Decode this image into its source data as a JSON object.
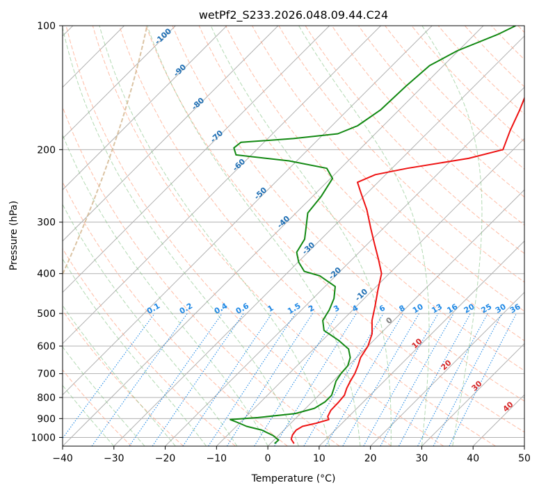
{
  "chart_data": {
    "type": "skew-t",
    "title": "wetPf2_S233.2026.048.09.44.C24",
    "xlabel": "Temperature (°C)",
    "ylabel": "Pressure (hPa)",
    "xlim": [
      -40,
      50
    ],
    "ylim": [
      1050,
      100
    ],
    "x_ticks": [
      -40,
      -30,
      -20,
      -10,
      0,
      10,
      20,
      30,
      40,
      50
    ],
    "y_ticks": [
      100,
      200,
      300,
      400,
      500,
      600,
      700,
      800,
      900,
      1000
    ],
    "grid": true,
    "colors": {
      "temperature": "#ee1111",
      "dewpoint": "#118811",
      "isotherm": "#b0b0b0",
      "dry_adiabat": "#ff9f7f",
      "moist_adiabat": "#7fbf7f",
      "mixing_ratio": "#1e88e5",
      "isentrope_label": "#1f6fb4",
      "hot_label": "#d62728",
      "zero_label": "#7f7f7f",
      "lcl_curve": "#d2b48c"
    },
    "series": [
      {
        "name": "Temperature",
        "points": [
          {
            "p": 1035,
            "t": 4.6
          },
          {
            "p": 1010,
            "t": 3.2
          },
          {
            "p": 985,
            "t": 2.6
          },
          {
            "p": 960,
            "t": 2.4
          },
          {
            "p": 940,
            "t": 2.9
          },
          {
            "p": 925,
            "t": 4.8
          },
          {
            "p": 905,
            "t": 6.7
          },
          {
            "p": 890,
            "t": 5.9
          },
          {
            "p": 860,
            "t": 5.3
          },
          {
            "p": 820,
            "t": 5.2
          },
          {
            "p": 790,
            "t": 5.0
          },
          {
            "p": 760,
            "t": 4.1
          },
          {
            "p": 730,
            "t": 3.4
          },
          {
            "p": 700,
            "t": 2.8
          },
          {
            "p": 670,
            "t": 1.9
          },
          {
            "p": 640,
            "t": 0.8
          },
          {
            "p": 600,
            "t": 0.0
          },
          {
            "p": 560,
            "t": -1.6
          },
          {
            "p": 520,
            "t": -4.2
          },
          {
            "p": 480,
            "t": -6.4
          },
          {
            "p": 440,
            "t": -8.9
          },
          {
            "p": 400,
            "t": -11.5
          },
          {
            "p": 370,
            "t": -14.8
          },
          {
            "p": 340,
            "t": -18.5
          },
          {
            "p": 310,
            "t": -22.5
          },
          {
            "p": 280,
            "t": -26.8
          },
          {
            "p": 255,
            "t": -31.2
          },
          {
            "p": 240,
            "t": -34.0
          },
          {
            "p": 230,
            "t": -32.0
          },
          {
            "p": 222,
            "t": -27.0
          },
          {
            "p": 210,
            "t": -17.0
          },
          {
            "p": 200,
            "t": -12.0
          },
          {
            "p": 180,
            "t": -14.3
          },
          {
            "p": 160,
            "t": -16.5
          },
          {
            "p": 140,
            "t": -19.3
          },
          {
            "p": 125,
            "t": -21.4
          },
          {
            "p": 115,
            "t": -23.0
          },
          {
            "p": 100,
            "t": -26.4
          }
        ]
      },
      {
        "name": "Dewpoint",
        "points": [
          {
            "p": 1035,
            "t": 0.8
          },
          {
            "p": 1015,
            "t": 0.9
          },
          {
            "p": 990,
            "t": -1.0
          },
          {
            "p": 960,
            "t": -4.3
          },
          {
            "p": 940,
            "t": -8.0
          },
          {
            "p": 920,
            "t": -10.5
          },
          {
            "p": 905,
            "t": -12.5
          },
          {
            "p": 895,
            "t": -7.5
          },
          {
            "p": 875,
            "t": -1.0
          },
          {
            "p": 850,
            "t": 1.7
          },
          {
            "p": 820,
            "t": 2.5
          },
          {
            "p": 790,
            "t": 2.5
          },
          {
            "p": 760,
            "t": 1.6
          },
          {
            "p": 730,
            "t": 0.6
          },
          {
            "p": 700,
            "t": 0.1
          },
          {
            "p": 670,
            "t": -0.1
          },
          {
            "p": 640,
            "t": -1.2
          },
          {
            "p": 610,
            "t": -3.2
          },
          {
            "p": 580,
            "t": -7.0
          },
          {
            "p": 550,
            "t": -11.6
          },
          {
            "p": 520,
            "t": -13.8
          },
          {
            "p": 490,
            "t": -14.6
          },
          {
            "p": 460,
            "t": -15.9
          },
          {
            "p": 430,
            "t": -18.0
          },
          {
            "p": 405,
            "t": -23.1
          },
          {
            "p": 395,
            "t": -27.0
          },
          {
            "p": 375,
            "t": -29.9
          },
          {
            "p": 355,
            "t": -32.2
          },
          {
            "p": 330,
            "t": -33.2
          },
          {
            "p": 305,
            "t": -35.6
          },
          {
            "p": 285,
            "t": -37.7
          },
          {
            "p": 260,
            "t": -38.3
          },
          {
            "p": 235,
            "t": -39.6
          },
          {
            "p": 222,
            "t": -42.7
          },
          {
            "p": 213,
            "t": -51.5
          },
          {
            "p": 206,
            "t": -63.0
          },
          {
            "p": 198,
            "t": -64.8
          },
          {
            "p": 192,
            "t": -64.5
          },
          {
            "p": 188,
            "t": -55.0
          },
          {
            "p": 183,
            "t": -47.3
          },
          {
            "p": 175,
            "t": -45.0
          },
          {
            "p": 160,
            "t": -43.6
          },
          {
            "p": 140,
            "t": -43.3
          },
          {
            "p": 125,
            "t": -42.7
          },
          {
            "p": 115,
            "t": -40.2
          },
          {
            "p": 105,
            "t": -35.5
          },
          {
            "p": 100,
            "t": -33.7
          }
        ]
      }
    ],
    "dry_adiabat_labels": [
      "-100",
      "-90",
      "-80",
      "-70",
      "-60",
      "-50",
      "-40",
      "-30",
      "-20",
      "-10",
      "0",
      "10",
      "20",
      "30",
      "40"
    ],
    "mixing_ratio_labels": [
      "0.1",
      "0.2",
      "0.4",
      "0.6",
      "1",
      "1.5",
      "2",
      "3",
      "4",
      "6",
      "8",
      "10",
      "13",
      "16",
      "20",
      "25",
      "30",
      "36"
    ]
  }
}
